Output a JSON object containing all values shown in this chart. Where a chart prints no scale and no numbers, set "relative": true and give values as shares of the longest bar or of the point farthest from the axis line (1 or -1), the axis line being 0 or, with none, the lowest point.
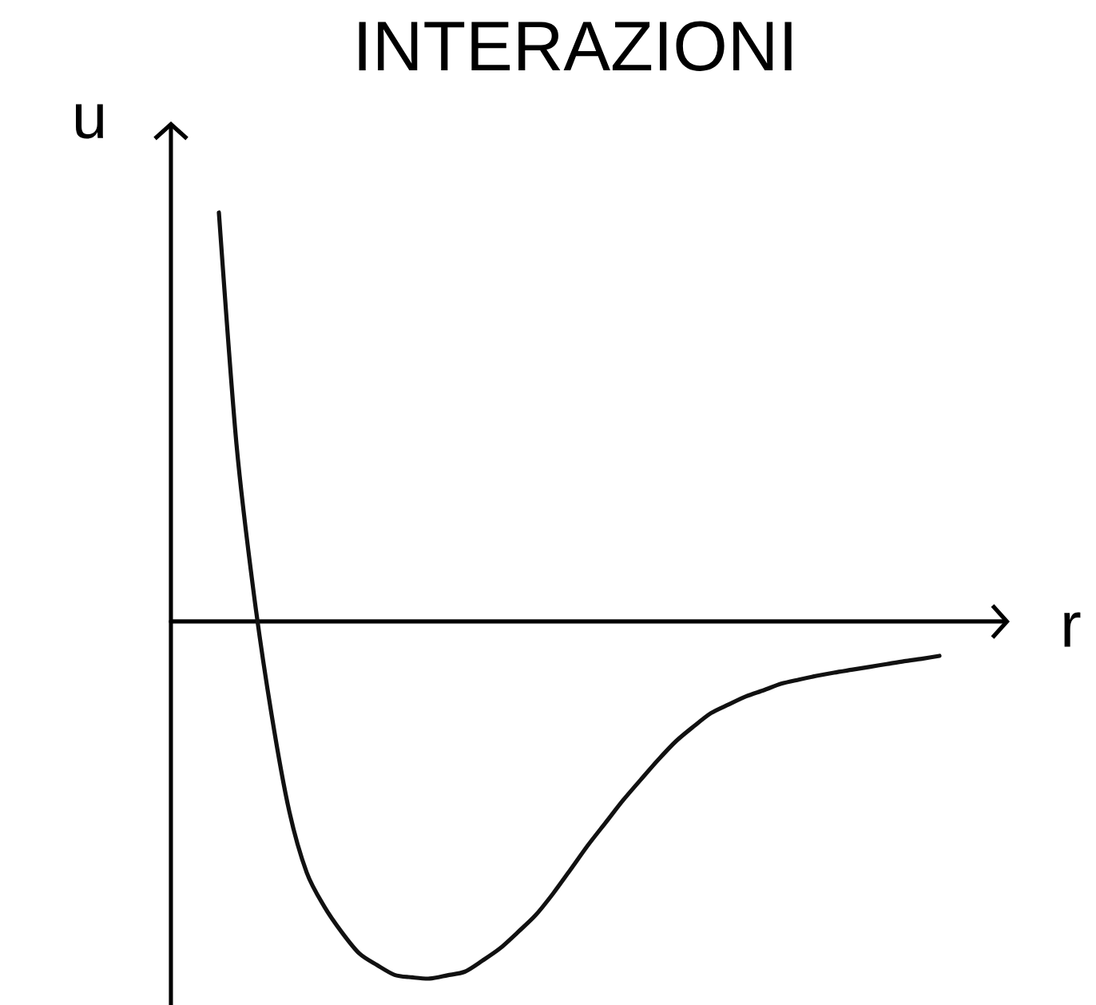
{
  "chart_data": {
    "type": "line",
    "title": "INTERAZIONI",
    "xlabel": "r",
    "ylabel": "u",
    "relative": true,
    "color": "#111111",
    "categories": [
      null,
      null,
      null,
      null,
      null,
      null,
      null,
      null,
      null,
      null,
      null,
      null,
      null,
      null,
      null,
      null,
      null,
      null,
      null,
      null,
      null,
      null,
      null,
      null,
      null,
      null,
      null,
      null,
      null,
      null,
      null,
      null,
      null,
      null,
      null,
      null,
      null,
      null,
      null,
      null,
      null,
      null
    ],
    "values": [
      1.0,
      0.434,
      0.064,
      -0.228,
      -0.463,
      -0.614,
      -0.697,
      -0.76,
      -0.812,
      -0.84,
      -0.864,
      -0.87,
      -0.873,
      -0.865,
      -0.856,
      -0.829,
      -0.799,
      -0.76,
      -0.719,
      -0.666,
      -0.607,
      -0.547,
      -0.492,
      -0.437,
      -0.387,
      -0.338,
      -0.293,
      -0.257,
      -0.224,
      -0.203,
      -0.183,
      -0.168,
      -0.152,
      -0.142,
      -0.133,
      -0.125,
      -0.118,
      -0.111,
      -0.104,
      -0.097,
      -0.091,
      -0.084
    ]
  }
}
